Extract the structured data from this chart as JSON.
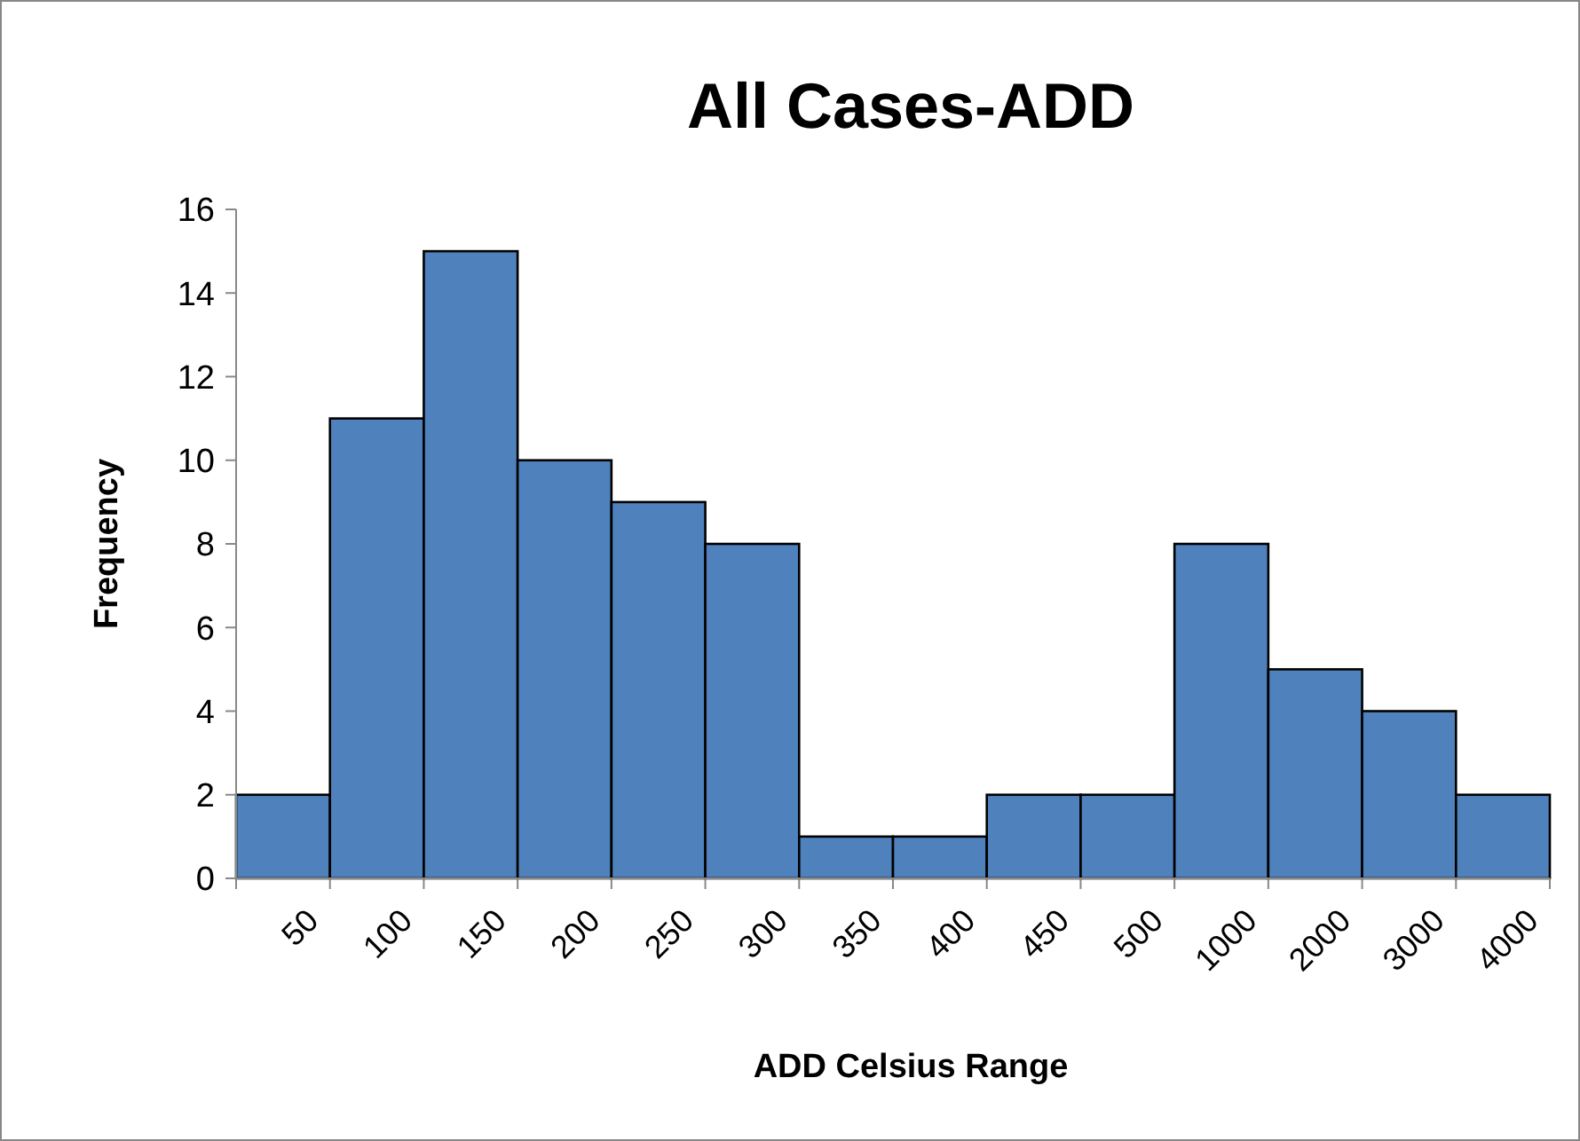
{
  "chart_data": {
    "type": "bar",
    "title": "All Cases-ADD",
    "xlabel": "ADD Celsius Range",
    "ylabel": "Frequency",
    "categories": [
      "50",
      "100",
      "150",
      "200",
      "250",
      "300",
      "350",
      "400",
      "450",
      "500",
      "1000",
      "2000",
      "3000",
      "4000"
    ],
    "values": [
      2,
      11,
      15,
      10,
      9,
      8,
      1,
      1,
      2,
      2,
      8,
      5,
      4,
      2
    ],
    "color": "#4f81bd",
    "ylim": [
      0,
      16
    ],
    "yticks": [
      0,
      2,
      4,
      6,
      8,
      10,
      12,
      14,
      16
    ],
    "grid": false
  }
}
